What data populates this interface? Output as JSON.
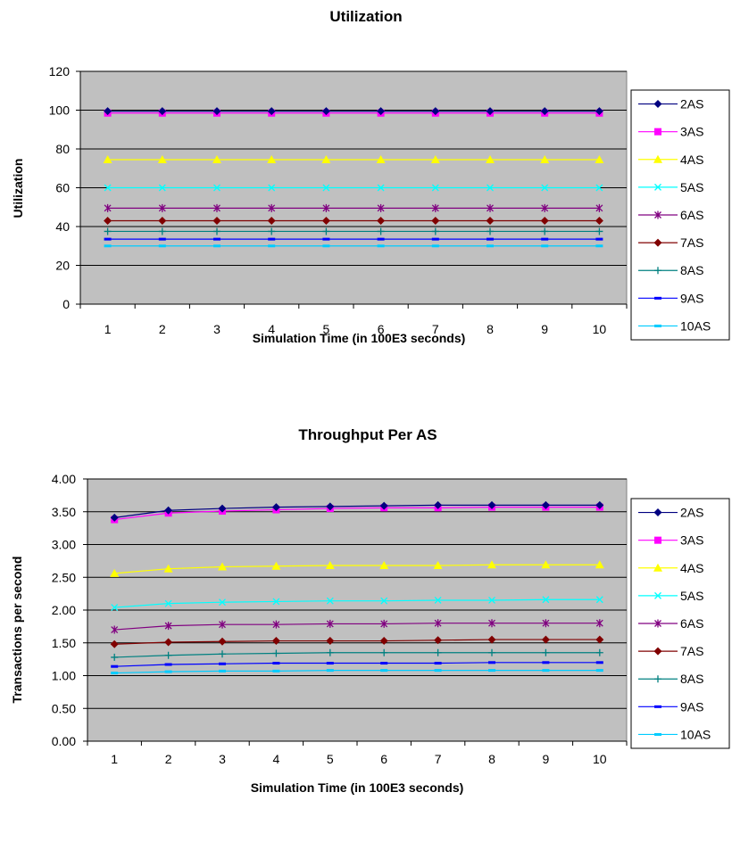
{
  "chart_data": [
    {
      "type": "line",
      "title": "Utilization",
      "xlabel": "Simulation Time (in 100E3 seconds)",
      "ylabel": "Utilization",
      "x": [
        1,
        2,
        3,
        4,
        5,
        6,
        7,
        8,
        9,
        10
      ],
      "ylim": [
        0,
        120
      ],
      "yticks": [
        "0",
        "20",
        "40",
        "60",
        "80",
        "100",
        "120"
      ],
      "grid": true,
      "legend_position": "right",
      "series": [
        {
          "name": "2AS",
          "values": [
            99.5,
            99.5,
            99.5,
            99.5,
            99.5,
            99.5,
            99.5,
            99.5,
            99.5,
            99.5
          ]
        },
        {
          "name": "3AS",
          "values": [
            98.5,
            98.5,
            98.5,
            98.5,
            98.5,
            98.5,
            98.5,
            98.5,
            98.5,
            98.5
          ]
        },
        {
          "name": "4AS",
          "values": [
            74.5,
            74.5,
            74.5,
            74.5,
            74.5,
            74.5,
            74.5,
            74.5,
            74.5,
            74.5
          ]
        },
        {
          "name": "5AS",
          "values": [
            60,
            60,
            60,
            60,
            60,
            60,
            60,
            60,
            60,
            60
          ]
        },
        {
          "name": "6AS",
          "values": [
            49.5,
            49.5,
            49.5,
            49.5,
            49.5,
            49.5,
            49.5,
            49.5,
            49.5,
            49.5
          ]
        },
        {
          "name": "7AS",
          "values": [
            43,
            43,
            43,
            43,
            43,
            43,
            43,
            43,
            43,
            43
          ]
        },
        {
          "name": "8AS",
          "values": [
            37.5,
            37.5,
            37.5,
            37.5,
            37.5,
            37.5,
            37.5,
            37.5,
            37.5,
            37.5
          ]
        },
        {
          "name": "9AS",
          "values": [
            33.5,
            33.5,
            33.5,
            33.5,
            33.5,
            33.5,
            33.5,
            33.5,
            33.5,
            33.5
          ]
        },
        {
          "name": "10AS",
          "values": [
            30,
            30,
            30,
            30,
            30,
            30,
            30,
            30,
            30,
            30
          ]
        }
      ]
    },
    {
      "type": "line",
      "title": "Throughput Per AS",
      "xlabel": "Simulation Time (in 100E3 seconds)",
      "ylabel": "Transactions per second",
      "x": [
        1,
        2,
        3,
        4,
        5,
        6,
        7,
        8,
        9,
        10
      ],
      "ylim": [
        0,
        4
      ],
      "yticks": [
        "0.00",
        "0.50",
        "1.00",
        "1.50",
        "2.00",
        "2.50",
        "3.00",
        "3.50",
        "4.00"
      ],
      "grid": true,
      "legend_position": "right",
      "series": [
        {
          "name": "2AS",
          "values": [
            3.41,
            3.52,
            3.55,
            3.57,
            3.58,
            3.59,
            3.6,
            3.6,
            3.6,
            3.6
          ]
        },
        {
          "name": "3AS",
          "values": [
            3.38,
            3.48,
            3.51,
            3.53,
            3.55,
            3.56,
            3.56,
            3.57,
            3.57,
            3.57
          ]
        },
        {
          "name": "4AS",
          "values": [
            2.56,
            2.63,
            2.66,
            2.67,
            2.68,
            2.68,
            2.68,
            2.69,
            2.69,
            2.69
          ]
        },
        {
          "name": "5AS",
          "values": [
            2.04,
            2.1,
            2.12,
            2.13,
            2.14,
            2.14,
            2.15,
            2.15,
            2.16,
            2.16
          ]
        },
        {
          "name": "6AS",
          "values": [
            1.7,
            1.76,
            1.78,
            1.78,
            1.79,
            1.79,
            1.8,
            1.8,
            1.8,
            1.8
          ]
        },
        {
          "name": "7AS",
          "values": [
            1.48,
            1.51,
            1.52,
            1.53,
            1.53,
            1.53,
            1.54,
            1.55,
            1.55,
            1.55
          ]
        },
        {
          "name": "8AS",
          "values": [
            1.28,
            1.31,
            1.33,
            1.34,
            1.35,
            1.35,
            1.35,
            1.35,
            1.35,
            1.35
          ]
        },
        {
          "name": "9AS",
          "values": [
            1.14,
            1.17,
            1.18,
            1.19,
            1.19,
            1.19,
            1.19,
            1.2,
            1.2,
            1.2
          ]
        },
        {
          "name": "10AS",
          "values": [
            1.04,
            1.06,
            1.07,
            1.07,
            1.08,
            1.08,
            1.08,
            1.08,
            1.08,
            1.08
          ]
        }
      ]
    }
  ],
  "series_style": [
    {
      "name": "2AS",
      "color": "#000080",
      "marker": "diamond"
    },
    {
      "name": "3AS",
      "color": "#ff00ff",
      "marker": "square"
    },
    {
      "name": "4AS",
      "color": "#ffff00",
      "marker": "triangle"
    },
    {
      "name": "5AS",
      "color": "#00ffff",
      "marker": "x"
    },
    {
      "name": "6AS",
      "color": "#800080",
      "marker": "star"
    },
    {
      "name": "7AS",
      "color": "#800000",
      "marker": "diamond"
    },
    {
      "name": "8AS",
      "color": "#008080",
      "marker": "plus"
    },
    {
      "name": "9AS",
      "color": "#0000ff",
      "marker": "dash"
    },
    {
      "name": "10AS",
      "color": "#00ccff",
      "marker": "dash"
    }
  ],
  "colors": {
    "plot_background": "#c0c0c0",
    "gridline": "#000000",
    "axis": "#000000"
  }
}
